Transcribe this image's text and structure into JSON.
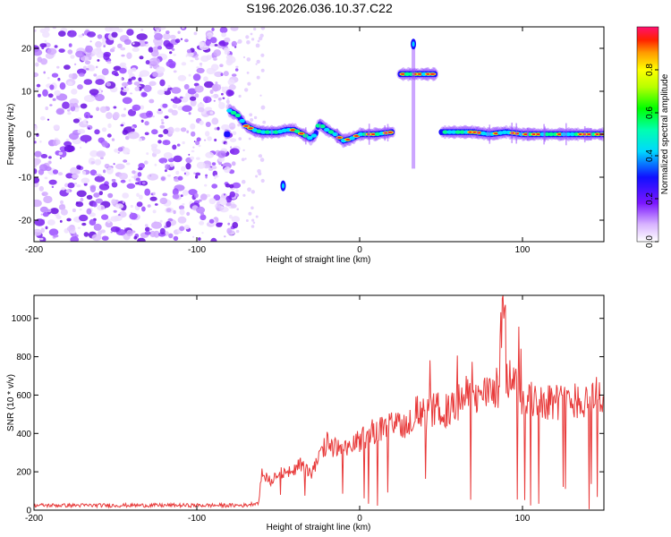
{
  "title": "S196.2026.036.10.37.C22",
  "chart_data": [
    {
      "type": "heatmap",
      "xlabel": "Height of straight line (km)",
      "ylabel": "Frequency (Hz)",
      "xlim": [
        -200,
        150
      ],
      "ylim": [
        -25,
        25
      ],
      "xticks": [
        -200,
        -100,
        0,
        100
      ],
      "yticks": [
        -20,
        -10,
        0,
        10,
        20
      ],
      "colorbar": {
        "label": "Normalized spectral amplitude",
        "range": [
          0,
          1
        ],
        "ticks": [
          "0.0",
          "0.2",
          "0.4",
          "0.6",
          "0.8"
        ]
      },
      "ridge": [
        {
          "x": -80,
          "y": 5.5
        },
        {
          "x": -75,
          "y": 4.5
        },
        {
          "x": -70,
          "y": 2
        },
        {
          "x": -65,
          "y": 1
        },
        {
          "x": -60,
          "y": 0.5
        },
        {
          "x": -55,
          "y": 0.5
        },
        {
          "x": -50,
          "y": 0.5
        },
        {
          "x": -45,
          "y": 1
        },
        {
          "x": -40,
          "y": 1
        },
        {
          "x": -35,
          "y": 0
        },
        {
          "x": -30,
          "y": -1
        },
        {
          "x": -27,
          "y": 0
        },
        {
          "x": -25,
          "y": 2.5
        },
        {
          "x": -20,
          "y": 1
        },
        {
          "x": -15,
          "y": 0
        },
        {
          "x": -10,
          "y": -1.5
        },
        {
          "x": -5,
          "y": -1
        },
        {
          "x": 0,
          "y": 0
        },
        {
          "x": 10,
          "y": 0
        },
        {
          "x": 20,
          "y": 0.5
        },
        {
          "x": 25,
          "y": 14
        },
        {
          "x": 35,
          "y": 14
        },
        {
          "x": 45,
          "y": 14
        },
        {
          "x": 50,
          "y": 0.5
        },
        {
          "x": 60,
          "y": 0.5
        },
        {
          "x": 70,
          "y": 0.5
        },
        {
          "x": 80,
          "y": 0
        },
        {
          "x": 90,
          "y": 0.5
        },
        {
          "x": 100,
          "y": 0
        },
        {
          "x": 110,
          "y": 0
        },
        {
          "x": 120,
          "y": 0
        },
        {
          "x": 130,
          "y": 0
        },
        {
          "x": 140,
          "y": 0
        },
        {
          "x": 150,
          "y": 0
        }
      ],
      "outliers": [
        {
          "x": -47,
          "y": -12
        },
        {
          "x": 33,
          "y": 21
        }
      ]
    },
    {
      "type": "line",
      "xlabel": "Height of straight line (km)",
      "ylabel": "SNR (10 * v/v)",
      "xlim": [
        -200,
        150
      ],
      "ylim": [
        0,
        1120
      ],
      "xticks": [
        -200,
        -100,
        0,
        100
      ],
      "yticks": [
        0,
        200,
        400,
        600,
        800,
        1000
      ],
      "color": "#e83a3a",
      "series": [
        {
          "name": "SNR",
          "x": [
            -200,
            -150,
            -100,
            -70,
            -62,
            -60,
            -55,
            -50,
            -45,
            -40,
            -35,
            -30,
            -25,
            -20,
            -15,
            -10,
            -5,
            0,
            5,
            10,
            15,
            20,
            25,
            30,
            35,
            40,
            45,
            50,
            55,
            60,
            65,
            70,
            75,
            80,
            85,
            88,
            90,
            95,
            100,
            105,
            110,
            115,
            120,
            125,
            130,
            135,
            140,
            145,
            150
          ],
          "values": [
            25,
            25,
            25,
            25,
            40,
            200,
            150,
            210,
            180,
            220,
            250,
            180,
            270,
            350,
            330,
            300,
            340,
            360,
            400,
            420,
            420,
            440,
            460,
            450,
            520,
            490,
            520,
            530,
            510,
            560,
            600,
            570,
            600,
            620,
            640,
            1100,
            700,
            660,
            580,
            570,
            580,
            570,
            570,
            560,
            580,
            570,
            580,
            600,
            580
          ]
        }
      ]
    }
  ]
}
